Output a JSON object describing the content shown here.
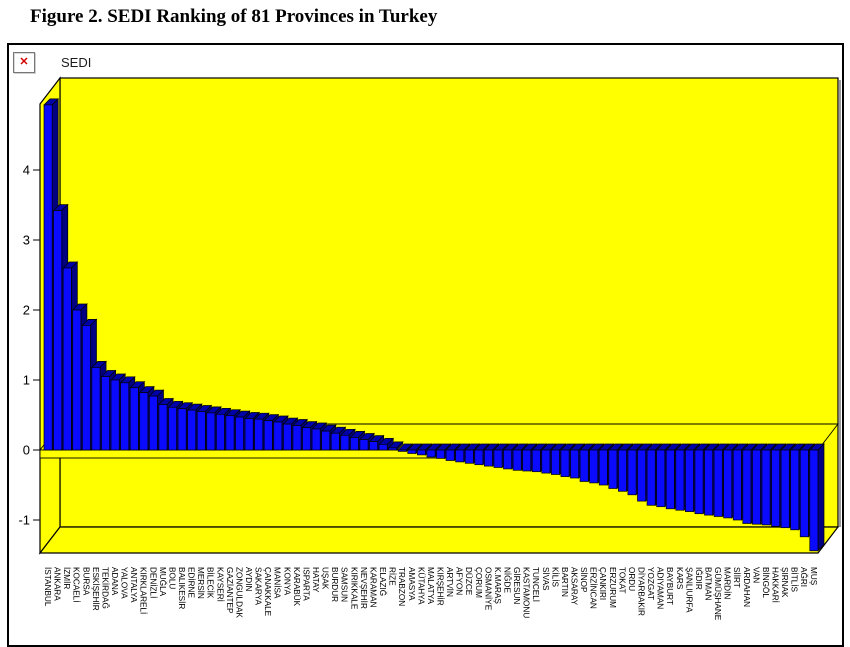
{
  "page": {
    "figure_title": "Figure 2. SEDI Ranking of 81 Provinces in Turkey"
  },
  "chart": {
    "broken_image_icon_glyph": "✕"
  },
  "chart_data": {
    "type": "bar",
    "title": "SEDI",
    "xlabel": "",
    "ylabel": "SEDI",
    "ylim": [
      -1.5,
      5
    ],
    "y_ticks": [
      4,
      3,
      2,
      1,
      0,
      -1
    ],
    "grid": "zero-line-only",
    "legend": "none",
    "style": "3d-column",
    "plot_bg": "#ffff00",
    "bar_color_front": "#0a0aff",
    "bar_color_top": "#0000a8",
    "bar_color_side": "#000080",
    "categories": [
      "İSTANBUL",
      "ANKARA",
      "İZMİR",
      "KOCAELİ",
      "BURSA",
      "ESKİŞEHİR",
      "TEKİRDAĞ",
      "ADANA",
      "YALOVA",
      "ANTALYA",
      "KIRKLARELİ",
      "DENİZLİ",
      "MUĞLA",
      "BOLU",
      "BALIKESİR",
      "EDİRNE",
      "MERSİN",
      "BİLECİK",
      "KAYSERİ",
      "GAZİANTEP",
      "ZONGULDAK",
      "AYDIN",
      "SAKARYA",
      "ÇANAKKALE",
      "MANİSA",
      "KONYA",
      "KARABÜK",
      "ISPARTA",
      "HATAY",
      "UŞAK",
      "BURDUR",
      "SAMSUN",
      "KIRIKKALE",
      "NEVŞEHİR",
      "KARAMAN",
      "ELAZIĞ",
      "RİZE",
      "TRABZON",
      "AMASYA",
      "KÜTAHYA",
      "MALATYA",
      "KIRŞEHİR",
      "ARTVİN",
      "AFYON",
      "DÜZCE",
      "ÇORUM",
      "OSMANİYE",
      "K.MARAŞ",
      "NİĞDE",
      "GİRESUN",
      "KASTAMONU",
      "TUNCELİ",
      "SİVAS",
      "KİLİS",
      "BARTIN",
      "AKSARAY",
      "SİNOP",
      "ERZİNCAN",
      "ÇANKIRI",
      "ERZURUM",
      "TOKAT",
      "ORDU",
      "DİYARBAKIR",
      "YOZGAT",
      "ADIYAMAN",
      "BAYBURT",
      "KARS",
      "ŞANLIURFA",
      "IĞDIR",
      "BATMAN",
      "GÜMÜŞHANE",
      "MARDİN",
      "SİİRT",
      "ARDAHAN",
      "VAN",
      "BİNGÖL",
      "HAKKARİ",
      "ŞIRNAK",
      "BİTLİS",
      "AĞRI",
      "MUŞ"
    ],
    "values": [
      4.93,
      3.42,
      2.6,
      2.0,
      1.78,
      1.18,
      1.05,
      1.0,
      0.96,
      0.89,
      0.82,
      0.77,
      0.65,
      0.61,
      0.59,
      0.57,
      0.55,
      0.53,
      0.51,
      0.49,
      0.47,
      0.45,
      0.44,
      0.42,
      0.4,
      0.37,
      0.35,
      0.32,
      0.3,
      0.27,
      0.24,
      0.21,
      0.18,
      0.15,
      0.12,
      0.08,
      0.03,
      -0.02,
      -0.05,
      -0.07,
      -0.1,
      -0.12,
      -0.15,
      -0.17,
      -0.19,
      -0.21,
      -0.23,
      -0.25,
      -0.27,
      -0.29,
      -0.3,
      -0.31,
      -0.33,
      -0.35,
      -0.38,
      -0.4,
      -0.45,
      -0.47,
      -0.5,
      -0.55,
      -0.59,
      -0.64,
      -0.73,
      -0.79,
      -0.81,
      -0.84,
      -0.86,
      -0.88,
      -0.91,
      -0.93,
      -0.95,
      -0.97,
      -1.0,
      -1.05,
      -1.06,
      -1.07,
      -1.09,
      -1.11,
      -1.14,
      -1.24,
      -1.44
    ]
  }
}
